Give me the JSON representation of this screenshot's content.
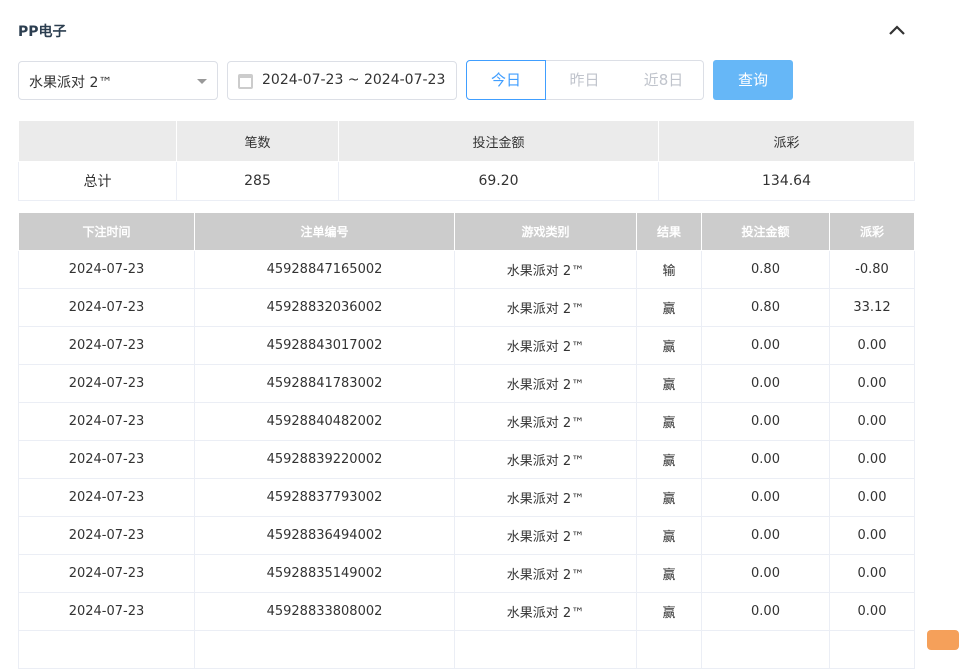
{
  "section": {
    "title": "PP电子"
  },
  "filters": {
    "game": "水果派对 2™",
    "date_range": "2024-07-23 ~ 2024-07-23",
    "quick": [
      "今日",
      "昨日",
      "近8日"
    ],
    "active_quick": 0,
    "query_label": "查询"
  },
  "summary": {
    "headers": [
      "",
      "笔数",
      "投注金额",
      "派彩"
    ],
    "row": [
      "总计",
      "285",
      "69.20",
      "134.64"
    ]
  },
  "detail": {
    "headers": [
      "下注时间",
      "注单编号",
      "游戏类别",
      "结果",
      "投注金额",
      "派彩"
    ],
    "rows": [
      [
        "2024-07-23",
        "45928847165002",
        "水果派对 2™",
        "输",
        "0.80",
        "-0.80"
      ],
      [
        "2024-07-23",
        "45928832036002",
        "水果派对 2™",
        "赢",
        "0.80",
        "33.12"
      ],
      [
        "2024-07-23",
        "45928843017002",
        "水果派对 2™",
        "赢",
        "0.00",
        "0.00"
      ],
      [
        "2024-07-23",
        "45928841783002",
        "水果派对 2™",
        "赢",
        "0.00",
        "0.00"
      ],
      [
        "2024-07-23",
        "45928840482002",
        "水果派对 2™",
        "赢",
        "0.00",
        "0.00"
      ],
      [
        "2024-07-23",
        "45928839220002",
        "水果派对 2™",
        "赢",
        "0.00",
        "0.00"
      ],
      [
        "2024-07-23",
        "45928837793002",
        "水果派对 2™",
        "赢",
        "0.00",
        "0.00"
      ],
      [
        "2024-07-23",
        "45928836494002",
        "水果派对 2™",
        "赢",
        "0.00",
        "0.00"
      ],
      [
        "2024-07-23",
        "45928835149002",
        "水果派对 2™",
        "赢",
        "0.00",
        "0.00"
      ],
      [
        "2024-07-23",
        "45928833808002",
        "水果派对 2™",
        "赢",
        "0.00",
        "0.00"
      ]
    ]
  },
  "colors": {
    "accent": "#409eff",
    "query_button": "#66b7f7",
    "negative": "#f04a5c"
  }
}
